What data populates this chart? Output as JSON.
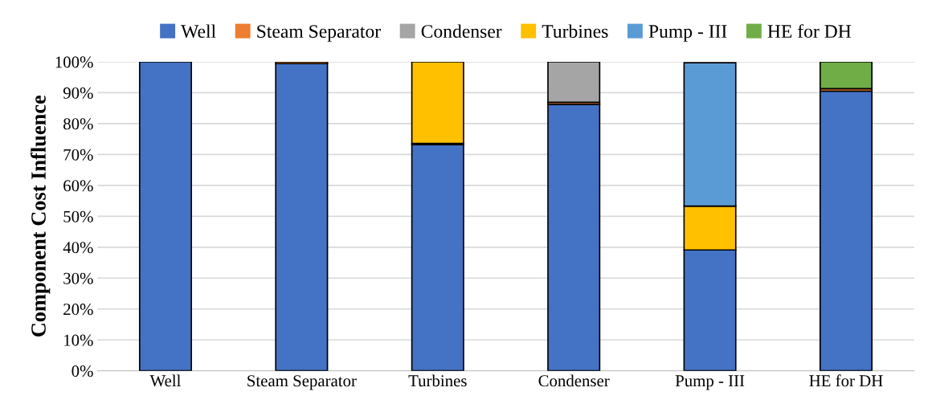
{
  "chart_data": {
    "type": "bar",
    "stacked": true,
    "ylabel": "Component Cost Influence",
    "categories": [
      "Well",
      "Steam Separator",
      "Turbines",
      "Condenser",
      "Pump - III",
      "HE for DH"
    ],
    "series": [
      {
        "name": "Well",
        "color": "#4472c4",
        "values": [
          100,
          99.4,
          73.2,
          86.2,
          39.1,
          90.5
        ]
      },
      {
        "name": "Steam Separator",
        "color": "#ed7d31",
        "values": [
          null,
          0.6,
          0.4,
          0.7,
          null,
          0.8
        ]
      },
      {
        "name": "Condenser",
        "color": "#a5a5a5",
        "values": [
          null,
          null,
          null,
          13.1,
          null,
          null
        ]
      },
      {
        "name": "Turbines",
        "color": "#ffc000",
        "values": [
          null,
          null,
          26.4,
          null,
          14.2,
          null
        ]
      },
      {
        "name": "Pump - III",
        "color": "#5b9bd5",
        "values": [
          null,
          null,
          null,
          null,
          46.4,
          null
        ]
      },
      {
        "name": "HE for DH",
        "color": "#70ad47",
        "values": [
          null,
          null,
          null,
          null,
          null,
          8.7
        ]
      }
    ],
    "ylim": [
      0,
      100
    ],
    "yticks": [
      {
        "value": 0,
        "label": "0%"
      },
      {
        "value": 10,
        "label": "10%"
      },
      {
        "value": 20,
        "label": "20%"
      },
      {
        "value": 30,
        "label": "30%"
      },
      {
        "value": 40,
        "label": "40%"
      },
      {
        "value": 50,
        "label": "50%"
      },
      {
        "value": 60,
        "label": "60%"
      },
      {
        "value": 70,
        "label": "70%"
      },
      {
        "value": 80,
        "label": "80%"
      },
      {
        "value": 90,
        "label": "90%"
      },
      {
        "value": 100,
        "label": "100%"
      }
    ],
    "grid": "y",
    "legend": "top"
  }
}
